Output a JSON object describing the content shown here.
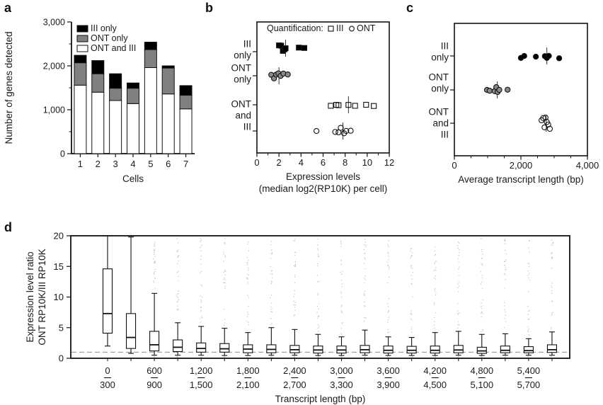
{
  "figure": {
    "background": "#ffffff",
    "panel_labels": {
      "a": "a",
      "b": "b",
      "c": "c",
      "d": "d"
    }
  },
  "colors": {
    "black": "#000000",
    "gray_fill": "#8a8a8a",
    "bar_gray": "#808080",
    "white": "#ffffff",
    "outlier_gray": "#c3c3c3",
    "dashed_reference": "#909090"
  },
  "chart_data": [
    {
      "id": "a",
      "type": "bar",
      "stacked": true,
      "xlabel": "Cells",
      "ylabel": "Number of genes detected",
      "categories": [
        "1",
        "2",
        "3",
        "4",
        "5",
        "6",
        "7"
      ],
      "series": [
        {
          "name": "ONT and III",
          "fill": "#ffffff",
          "values": [
            1560,
            1400,
            1210,
            1140,
            1960,
            1360,
            1020
          ]
        },
        {
          "name": "ONT only",
          "fill": "#808080",
          "values": [
            510,
            420,
            280,
            350,
            410,
            590,
            310
          ]
        },
        {
          "name": "III only",
          "fill": "#000000",
          "values": [
            170,
            300,
            330,
            120,
            170,
            50,
            220
          ]
        }
      ],
      "totals": [
        2240,
        2120,
        1820,
        1610,
        2540,
        2000,
        1550
      ],
      "legend": [
        {
          "label": "III only",
          "fill": "#000000"
        },
        {
          "label": "ONT only",
          "fill": "#808080"
        },
        {
          "label": "ONT and III",
          "fill": "#ffffff"
        }
      ],
      "ylim": [
        0,
        3000
      ],
      "yticks": [
        {
          "v": 0,
          "label": "0"
        },
        {
          "v": 1000,
          "label": "1,000"
        },
        {
          "v": 2000,
          "label": "2,000"
        },
        {
          "v": 3000,
          "label": "3,000"
        }
      ],
      "yticks_minor": [
        500,
        1500,
        2500
      ],
      "grid": false
    },
    {
      "id": "b",
      "type": "scatter",
      "xlabel_lines": [
        "Expression levels",
        "(median log2(RP10K) per cell)"
      ],
      "xlim": [
        0,
        12
      ],
      "xticks": [
        {
          "v": 0,
          "label": "0"
        },
        {
          "v": 2,
          "label": "2"
        },
        {
          "v": 4,
          "label": "4"
        },
        {
          "v": 6,
          "label": "6"
        },
        {
          "v": 8,
          "label": "8"
        },
        {
          "v": 10,
          "label": "10"
        },
        {
          "v": 12,
          "label": "12"
        }
      ],
      "xticks_minor": [
        1,
        3,
        5,
        7,
        9,
        11
      ],
      "legend": {
        "prefix": "Quantification:",
        "items": [
          {
            "marker": "open-square",
            "label": "III"
          },
          {
            "marker": "open-circle",
            "label": "ONT"
          }
        ]
      },
      "row_labels": [
        {
          "lines": [
            "III",
            "only"
          ],
          "y": 70
        },
        {
          "lines": [
            "ONT",
            "only"
          ],
          "y": 104
        },
        {
          "lines": [
            "ONT",
            "and",
            "III"
          ],
          "y": 163
        }
      ],
      "row_ticks": [
        73,
        107,
        148,
        185
      ],
      "groups": [
        {
          "category": "III only",
          "quantification": "III",
          "marker": "square",
          "fill": "#000000",
          "y": 68,
          "spread": 4,
          "values": [
            2.0,
            2.2,
            2.35,
            2.5,
            2.6,
            3.8,
            4.3
          ],
          "mean": 2.6
        },
        {
          "category": "ONT only",
          "quantification": "ONT",
          "marker": "circle",
          "fill": "#8a8a8a",
          "y": 107,
          "spread": 4,
          "values": [
            1.3,
            1.55,
            1.75,
            1.95,
            2.15,
            2.4,
            2.8
          ],
          "mean": 2.0
        },
        {
          "category": "ONT and III",
          "quantification": "III",
          "marker": "square",
          "fill": "none",
          "y": 148,
          "spread": 2,
          "values": [
            6.7,
            7.2,
            7.4,
            8.3,
            8.9,
            9.9,
            10.6
          ],
          "mean": 8.3
        },
        {
          "category": "ONT and III",
          "quantification": "ONT",
          "marker": "circle",
          "fill": "none",
          "y": 185,
          "spread": 4.5,
          "values": [
            5.4,
            7.1,
            7.4,
            7.6,
            7.9,
            8.1,
            8.5
          ],
          "mean": 7.8
        }
      ]
    },
    {
      "id": "c",
      "type": "scatter",
      "xlabel_lines": [
        "Average transcript length (bp)"
      ],
      "xlim": [
        0,
        4000
      ],
      "xticks": [
        {
          "v": 0,
          "label": "0"
        },
        {
          "v": 2000,
          "label": "2,000"
        },
        {
          "v": 4000,
          "label": "4,000"
        }
      ],
      "xticks_minor": [
        500,
        1000,
        1500,
        2500,
        3000,
        3500
      ],
      "row_labels": [
        {
          "lines": [
            "III",
            "only"
          ],
          "y": 73
        },
        {
          "lines": [
            "ONT",
            "only"
          ],
          "y": 117
        },
        {
          "lines": [
            "ONT",
            "and",
            "III"
          ],
          "y": 174
        }
      ],
      "row_ticks": [
        79,
        127,
        174
      ],
      "groups": [
        {
          "category": "III only",
          "marker": "circle",
          "fill": "#000000",
          "y": 79,
          "spread": 4,
          "values": [
            2000,
            2100,
            2450,
            2720,
            2780,
            2840,
            3150
          ],
          "mean": 2780
        },
        {
          "category": "ONT only",
          "marker": "circle",
          "fill": "#8a8a8a",
          "y": 127,
          "spread": 4,
          "values": [
            980,
            1060,
            1210,
            1260,
            1300,
            1350,
            1600
          ],
          "mean": 1290
        },
        {
          "category": "ONT and III",
          "marker": "circle",
          "fill": "none",
          "y": 174,
          "spread": 8,
          "values": [
            2620,
            2670,
            2710,
            2740,
            2780,
            2820,
            2870
          ],
          "mean": 2760
        }
      ]
    },
    {
      "id": "d",
      "type": "box",
      "xlabel": "Transcript length (bp)",
      "ylabel_lines": [
        "Expression level ratio",
        "ONT RP10K/III RP10K"
      ],
      "ylim": [
        0,
        20
      ],
      "yticks": [
        {
          "v": 0,
          "label": "0"
        },
        {
          "v": 5,
          "label": "5"
        },
        {
          "v": 10,
          "label": "10"
        },
        {
          "v": 15,
          "label": "15"
        },
        {
          "v": 20,
          "label": "20"
        }
      ],
      "reference_line": 1,
      "bin_labels": [
        {
          "top": "0",
          "bottom": "300"
        },
        {
          "top": "600",
          "bottom": "900"
        },
        {
          "top": "1,200",
          "bottom": "1,500"
        },
        {
          "top": "1,800",
          "bottom": "2,100"
        },
        {
          "top": "2,400",
          "bottom": "2,700"
        },
        {
          "top": "3,000",
          "bottom": "3,300"
        },
        {
          "top": "3,600",
          "bottom": "3,900"
        },
        {
          "top": "4,200",
          "bottom": "4,500"
        },
        {
          "top": "4,800",
          "bottom": "5,100"
        },
        {
          "top": "5,400",
          "bottom": "5,700"
        }
      ],
      "boxes_stats_order": [
        "whisker_low",
        "q1",
        "median",
        "q3",
        "whisker_high"
      ],
      "boxes": [
        [
          2.0,
          4.1,
          7.3,
          14.6,
          20.0
        ],
        [
          0.8,
          1.6,
          3.4,
          7.3,
          19.8
        ],
        [
          0.5,
          1.2,
          2.2,
          4.4,
          10.6
        ],
        [
          0.5,
          1.1,
          1.8,
          3.0,
          5.8
        ],
        [
          0.5,
          1.0,
          1.6,
          2.5,
          5.2
        ],
        [
          0.45,
          1.0,
          1.55,
          2.4,
          4.9
        ],
        [
          0.45,
          0.9,
          1.5,
          2.2,
          4.2
        ],
        [
          0.5,
          0.9,
          1.45,
          2.2,
          5.0
        ],
        [
          0.5,
          0.9,
          1.4,
          2.1,
          4.7
        ],
        [
          0.45,
          0.85,
          1.35,
          2.0,
          3.9
        ],
        [
          0.45,
          0.85,
          1.35,
          2.0,
          3.5
        ],
        [
          0.5,
          0.9,
          1.4,
          2.1,
          4.6
        ],
        [
          0.45,
          0.85,
          1.3,
          2.0,
          3.5
        ],
        [
          0.45,
          0.85,
          1.3,
          1.95,
          3.4
        ],
        [
          0.45,
          0.85,
          1.3,
          2.0,
          4.2
        ],
        [
          0.5,
          0.9,
          1.35,
          2.1,
          4.4
        ],
        [
          0.45,
          0.8,
          1.2,
          1.8,
          3.9
        ],
        [
          0.5,
          0.9,
          1.3,
          2.0,
          4.0
        ],
        [
          0.5,
          0.9,
          1.25,
          1.9,
          3.2
        ],
        [
          0.5,
          0.95,
          1.4,
          2.2,
          4.3
        ]
      ],
      "outliers": {
        "shown": true,
        "max": 20,
        "color": "#c3c3c3"
      }
    }
  ]
}
